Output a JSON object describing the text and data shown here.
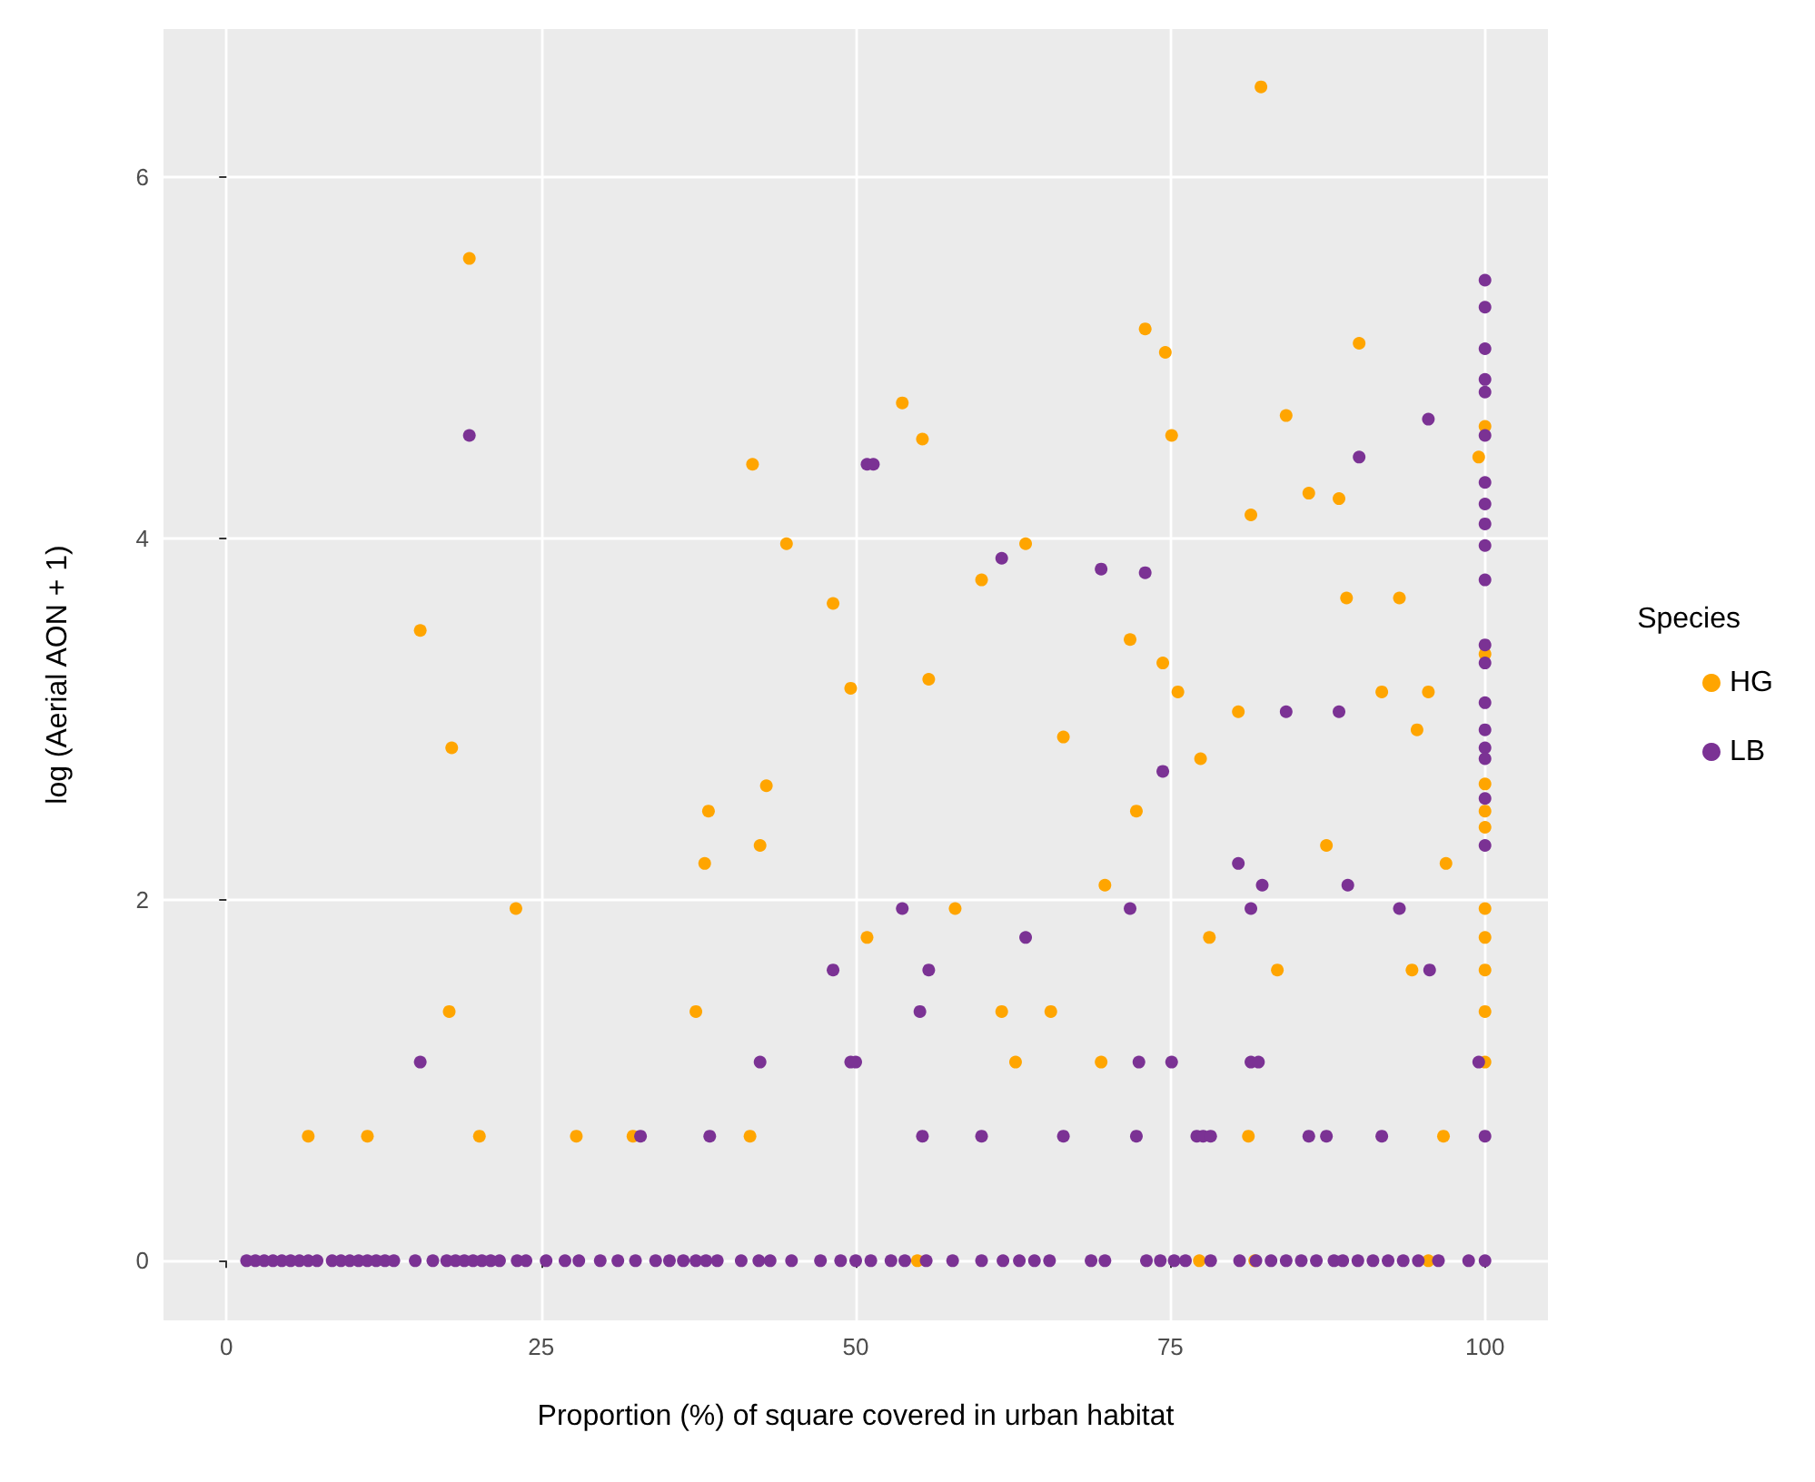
{
  "chart_data": {
    "type": "scatter",
    "xlabel": "Proportion (%) of square covered in urban habitat",
    "ylabel": "log (Aerial AON + 1)",
    "legend_title": "Species",
    "legend": "right",
    "grid": true,
    "marker": "circle",
    "xlim": [
      -5,
      105
    ],
    "ylim": [
      -0.33,
      6.82
    ],
    "xticks": [
      0,
      25,
      50,
      75,
      100
    ],
    "yticks": [
      0,
      2,
      4,
      6
    ],
    "series": [
      {
        "name": "HG",
        "color": "#ffa500",
        "x": [
          82.2,
          19.3,
          41.8,
          44.5,
          48.2,
          49.6,
          15.4,
          17.9,
          42.9,
          38.3,
          42.4,
          38.0,
          23.0,
          50.9,
          17.7,
          37.3,
          6.5,
          11.2,
          20.1,
          27.8,
          32.3,
          41.6,
          100,
          100,
          100,
          100,
          100,
          100,
          100,
          100,
          100,
          100,
          99.5,
          73.0,
          74.6,
          90.0,
          53.7,
          55.3,
          75.1,
          84.2,
          86.0,
          88.4,
          81.4,
          63.5,
          60.0,
          89.0,
          93.2,
          71.8,
          74.4,
          55.8,
          75.6,
          91.8,
          95.5,
          80.4,
          94.6,
          66.5,
          77.4,
          72.3,
          87.4,
          96.9,
          69.8,
          57.9,
          78.1,
          83.5,
          94.2,
          61.6,
          65.5,
          62.7,
          69.5,
          81.2,
          96.7,
          54.9,
          77.3,
          81.7,
          95.5
        ],
        "values": [
          6.5,
          5.55,
          4.41,
          3.97,
          3.64,
          3.17,
          3.49,
          2.84,
          2.63,
          2.49,
          2.3,
          2.2,
          1.95,
          1.79,
          1.38,
          1.38,
          0.69,
          0.69,
          0.69,
          0.69,
          0.69,
          0.69,
          4.62,
          3.36,
          2.64,
          2.49,
          2.4,
          1.95,
          1.79,
          1.61,
          1.38,
          1.1,
          4.45,
          5.16,
          5.03,
          5.08,
          4.75,
          4.55,
          4.57,
          4.68,
          4.25,
          4.22,
          4.13,
          3.97,
          3.77,
          3.67,
          3.67,
          3.44,
          3.31,
          3.22,
          3.15,
          3.15,
          3.15,
          3.04,
          2.94,
          2.9,
          2.78,
          2.49,
          2.3,
          2.2,
          2.08,
          1.95,
          1.79,
          1.61,
          1.61,
          1.38,
          1.38,
          1.1,
          1.1,
          0.69,
          0.69,
          0,
          0,
          0,
          0
        ]
      },
      {
        "name": "LB",
        "color": "#7b3294",
        "x": [
          19.3,
          50.9,
          48.2,
          15.4,
          42.4,
          49.6,
          32.9,
          38.4,
          100,
          100,
          100,
          100,
          100,
          100,
          100,
          100,
          100,
          100,
          100,
          100,
          100,
          100,
          100,
          100,
          100,
          100,
          100,
          99.5,
          51.4,
          95.5,
          90.0,
          61.6,
          69.5,
          73.0,
          84.2,
          88.4,
          74.4,
          80.4,
          82.3,
          89.1,
          53.7,
          71.8,
          81.4,
          93.2,
          63.5,
          55.8,
          95.6,
          55.1,
          50.0,
          72.5,
          75.1,
          81.4,
          82.0,
          55.3,
          60.0,
          66.5,
          72.3,
          77.1,
          77.6,
          78.2,
          86.0,
          87.4,
          91.8,
          100,
          1.6,
          2.3,
          3.0,
          3.7,
          4.4,
          5.1,
          5.8,
          6.5,
          7.2,
          8.4,
          9.1,
          9.8,
          10.5,
          11.2,
          11.9,
          12.6,
          13.3,
          15.0,
          16.4,
          17.5,
          18.2,
          18.9,
          19.6,
          20.3,
          21.0,
          21.7,
          23.1,
          23.8,
          25.4,
          26.9,
          28.0,
          29.7,
          31.1,
          32.5,
          34.1,
          35.2,
          36.3,
          37.3,
          38.1,
          39.0,
          40.9,
          42.3,
          43.2,
          44.9,
          47.2,
          48.8,
          50.0,
          51.2,
          52.8,
          53.9,
          55.6,
          57.7,
          60.0,
          61.7,
          63.0,
          64.2,
          65.4,
          68.7,
          69.8,
          73.1,
          74.2,
          75.3,
          76.2,
          78.2,
          80.5,
          81.8,
          83.0,
          84.2,
          85.4,
          86.6,
          88.0,
          88.7,
          89.9,
          91.1,
          92.3,
          93.5,
          94.7,
          96.3,
          98.7,
          100
        ],
        "values": [
          4.57,
          4.41,
          1.61,
          1.1,
          1.1,
          1.1,
          0.69,
          0.69,
          5.43,
          5.28,
          5.05,
          4.88,
          4.81,
          4.57,
          4.31,
          4.19,
          4.08,
          3.96,
          3.77,
          3.41,
          3.31,
          3.09,
          2.94,
          2.84,
          2.78,
          2.56,
          2.3,
          1.1,
          4.41,
          4.66,
          4.45,
          3.89,
          3.83,
          3.81,
          3.04,
          3.04,
          2.71,
          2.2,
          2.08,
          2.08,
          1.95,
          1.95,
          1.95,
          1.95,
          1.79,
          1.61,
          1.61,
          1.38,
          1.1,
          1.1,
          1.1,
          1.1,
          1.1,
          0.69,
          0.69,
          0.69,
          0.69,
          0.69,
          0.69,
          0.69,
          0.69,
          0.69,
          0.69,
          0.69,
          0,
          0,
          0,
          0,
          0,
          0,
          0,
          0,
          0,
          0,
          0,
          0,
          0,
          0,
          0,
          0,
          0,
          0,
          0,
          0,
          0,
          0,
          0,
          0,
          0,
          0,
          0,
          0,
          0,
          0,
          0,
          0,
          0,
          0,
          0,
          0,
          0,
          0,
          0,
          0,
          0,
          0,
          0,
          0,
          0,
          0,
          0,
          0,
          0,
          0,
          0,
          0,
          0,
          0,
          0,
          0,
          0,
          0,
          0,
          0,
          0,
          0,
          0,
          0,
          0,
          0,
          0,
          0,
          0,
          0,
          0,
          0,
          0,
          0,
          0,
          0,
          0,
          0,
          0,
          0
        ]
      }
    ]
  }
}
